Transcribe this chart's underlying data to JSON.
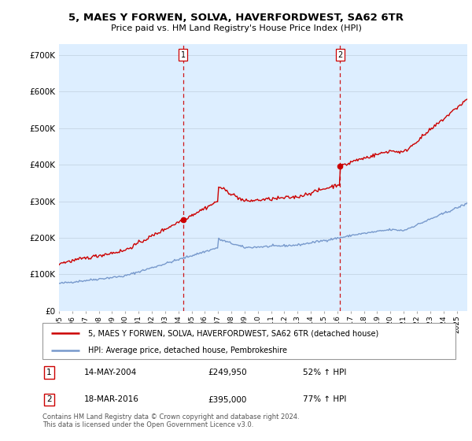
{
  "title": "5, MAES Y FORWEN, SOLVA, HAVERFORDWEST, SA62 6TR",
  "subtitle": "Price paid vs. HM Land Registry's House Price Index (HPI)",
  "ylim": [
    0,
    730000
  ],
  "xlim_start": 1995.0,
  "xlim_end": 2025.8,
  "hpi_color": "#7799cc",
  "price_color": "#cc0000",
  "vline_color": "#cc0000",
  "bg_color": "#ddeeff",
  "grid_color": "#c8d8e8",
  "sale1_year": 2004.37,
  "sale1_price": 249950,
  "sale2_year": 2016.21,
  "sale2_price": 395000,
  "legend_line1": "5, MAES Y FORWEN, SOLVA, HAVERFORDWEST, SA62 6TR (detached house)",
  "legend_line2": "HPI: Average price, detached house, Pembrokeshire",
  "annotation1_date": "14-MAY-2004",
  "annotation1_price": "£249,950",
  "annotation1_hpi": "52% ↑ HPI",
  "annotation2_date": "18-MAR-2016",
  "annotation2_price": "£395,000",
  "annotation2_hpi": "77% ↑ HPI",
  "footer": "Contains HM Land Registry data © Crown copyright and database right 2024.\nThis data is licensed under the Open Government Licence v3.0.",
  "xtick_years": [
    1995,
    1996,
    1997,
    1998,
    1999,
    2000,
    2001,
    2002,
    2003,
    2004,
    2005,
    2006,
    2007,
    2008,
    2009,
    2010,
    2011,
    2012,
    2013,
    2014,
    2015,
    2016,
    2017,
    2018,
    2019,
    2020,
    2021,
    2022,
    2023,
    2024,
    2025
  ]
}
